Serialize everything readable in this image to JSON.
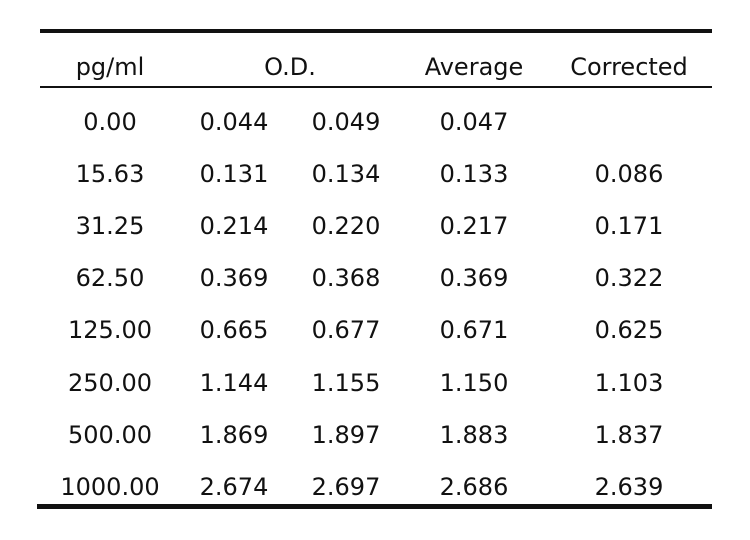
{
  "headers": {
    "concentration": "pg/ml",
    "od": "O.D.",
    "average": "Average",
    "corrected": "Corrected"
  },
  "rows": [
    {
      "conc": "0.00",
      "od1": "0.044",
      "od2": "0.049",
      "avg": "0.047",
      "corr": ""
    },
    {
      "conc": "15.63",
      "od1": "0.131",
      "od2": "0.134",
      "avg": "0.133",
      "corr": "0.086"
    },
    {
      "conc": "31.25",
      "od1": "0.214",
      "od2": "0.220",
      "avg": "0.217",
      "corr": "0.171"
    },
    {
      "conc": "62.50",
      "od1": "0.369",
      "od2": "0.368",
      "avg": "0.369",
      "corr": "0.322"
    },
    {
      "conc": "125.00",
      "od1": "0.665",
      "od2": "0.677",
      "avg": "0.671",
      "corr": "0.625"
    },
    {
      "conc": "250.00",
      "od1": "1.144",
      "od2": "1.155",
      "avg": "1.150",
      "corr": "1.103"
    },
    {
      "conc": "500.00",
      "od1": "1.869",
      "od2": "1.897",
      "avg": "1.883",
      "corr": "1.837"
    },
    {
      "conc": "1000.00",
      "od1": "2.674",
      "od2": "2.697",
      "avg": "2.686",
      "corr": "2.639"
    }
  ]
}
